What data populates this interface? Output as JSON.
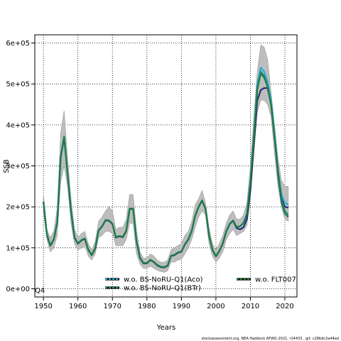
{
  "chart_data": {
    "type": "line",
    "title": "",
    "xlabel": "Years",
    "ylabel": "SSB",
    "xlim": [
      1947.5,
      2023.5
    ],
    "ylim": [
      -20000,
      620000
    ],
    "xticks": [
      1950,
      1960,
      1970,
      1980,
      1990,
      2000,
      2010,
      2020
    ],
    "yticks": [
      0,
      100000,
      200000,
      300000,
      400000,
      500000,
      600000
    ],
    "ytick_labels": [
      "0e+00",
      "1e+05",
      "2e+05",
      "3e+05",
      "4e+05",
      "5e+05",
      "6e+05"
    ],
    "grid": true,
    "legend_position": "bottom",
    "corner_label": "Q4",
    "footer": "stockassessment.org, NEA Haddock AFWG 2021, r14433 , git: c28bdc2a44ad",
    "x": [
      1950,
      1951,
      1952,
      1953,
      1954,
      1955,
      1956,
      1957,
      1958,
      1959,
      1960,
      1961,
      1962,
      1963,
      1964,
      1965,
      1966,
      1967,
      1968,
      1969,
      1970,
      1971,
      1972,
      1973,
      1974,
      1975,
      1976,
      1977,
      1978,
      1979,
      1980,
      1981,
      1982,
      1983,
      1984,
      1985,
      1986,
      1987,
      1988,
      1989,
      1990,
      1991,
      1992,
      1993,
      1994,
      1995,
      1996,
      1997,
      1998,
      1999,
      2000,
      2001,
      2002,
      2003,
      2004,
      2005,
      2006,
      2007,
      2008,
      2009,
      2010,
      2011,
      2012,
      2013,
      2014,
      2015,
      2016,
      2017,
      2018,
      2019,
      2020,
      2021
    ],
    "band": {
      "lower": [
        190000,
        120000,
        90000,
        100000,
        130000,
        260000,
        300000,
        250000,
        160000,
        110000,
        95000,
        100000,
        105000,
        80000,
        70000,
        85000,
        125000,
        130000,
        140000,
        140000,
        135000,
        105000,
        105000,
        105000,
        120000,
        160000,
        160000,
        85000,
        60000,
        50000,
        50000,
        55000,
        50000,
        45000,
        42000,
        40000,
        44000,
        65000,
        65000,
        70000,
        72000,
        85000,
        100000,
        120000,
        150000,
        175000,
        190000,
        180000,
        110000,
        80000,
        65000,
        75000,
        90000,
        120000,
        135000,
        145000,
        130000,
        135000,
        140000,
        155000,
        220000,
        330000,
        430000,
        460000,
        460000,
        450000,
        420000,
        330000,
        250000,
        200000,
        170000,
        165000
      ],
      "upper": [
        230000,
        145000,
        125000,
        140000,
        195000,
        380000,
        435000,
        320000,
        220000,
        145000,
        125000,
        135000,
        140000,
        110000,
        95000,
        115000,
        165000,
        175000,
        190000,
        200000,
        190000,
        145000,
        150000,
        150000,
        170000,
        230000,
        230000,
        140000,
        90000,
        75000,
        75000,
        85000,
        80000,
        70000,
        65000,
        65000,
        70000,
        95000,
        100000,
        105000,
        110000,
        130000,
        140000,
        165000,
        205000,
        220000,
        240000,
        210000,
        150000,
        110000,
        95000,
        110000,
        130000,
        160000,
        180000,
        190000,
        170000,
        170000,
        180000,
        210000,
        300000,
        420000,
        530000,
        595000,
        590000,
        560000,
        480000,
        400000,
        320000,
        265000,
        250000,
        250000
      ]
    },
    "series": [
      {
        "name": "w.o. BS-NoRU-Q1(Aco)",
        "color": "#26aedb",
        "values": [
          212000,
          132000,
          105000,
          120000,
          162000,
          320000,
          370000,
          280000,
          190000,
          125000,
          110000,
          118000,
          122000,
          95000,
          82000,
          98000,
          142000,
          152000,
          167000,
          166000,
          158000,
          125000,
          128000,
          126000,
          141000,
          195000,
          195000,
          115000,
          75000,
          62000,
          62000,
          70000,
          65000,
          57000,
          53000,
          52000,
          56000,
          80000,
          82000,
          88000,
          90000,
          108000,
          120000,
          141000,
          178000,
          200000,
          215000,
          195000,
          130000,
          95000,
          79000,
          92000,
          110000,
          140000,
          158000,
          166000,
          150000,
          152000,
          160000,
          182000,
          260000,
          370000,
          500000,
          540000,
          530000,
          505000,
          460000,
          380000,
          290000,
          230000,
          210000,
          205000
        ]
      },
      {
        "name": "w.o. BS-NoRU-Q1(BTr)",
        "color": "#1d8c78",
        "values": [
          213000,
          133000,
          106000,
          121000,
          163000,
          322000,
          372000,
          281000,
          191000,
          126000,
          111000,
          119000,
          123000,
          96000,
          83000,
          99000,
          143000,
          153000,
          168000,
          167000,
          159000,
          126000,
          129000,
          127000,
          142000,
          196000,
          196000,
          116000,
          76000,
          63000,
          63000,
          71000,
          66000,
          58000,
          54000,
          53000,
          57000,
          81000,
          83000,
          89000,
          91000,
          109000,
          121000,
          142000,
          179000,
          201000,
          216000,
          196000,
          131000,
          96000,
          80000,
          93000,
          111000,
          141000,
          159000,
          167000,
          151000,
          153000,
          161000,
          183000,
          262000,
          375000,
          490000,
          530000,
          520000,
          495000,
          450000,
          370000,
          280000,
          215000,
          190000,
          180000
        ]
      },
      {
        "name": "w.o. FLT007",
        "color": "#1f7a3a",
        "values": [
          212500,
          132500,
          105500,
          120500,
          162500,
          321000,
          371000,
          280500,
          190500,
          125500,
          110500,
          118500,
          122500,
          95500,
          82500,
          98500,
          142500,
          152500,
          167500,
          166500,
          158500,
          125500,
          128500,
          126500,
          141500,
          195500,
          195500,
          115500,
          75500,
          62500,
          62500,
          70500,
          65500,
          57500,
          53500,
          52500,
          56500,
          80500,
          82500,
          88500,
          90500,
          108500,
          120500,
          141500,
          178500,
          200500,
          215500,
          195500,
          130500,
          95500,
          79500,
          92500,
          110500,
          140500,
          158500,
          166500,
          150500,
          152500,
          160500,
          182500,
          258000,
          365000,
          485000,
          525000,
          515000,
          492000,
          448000,
          368000,
          276000,
          210000,
          183000,
          175000
        ]
      },
      {
        "name": "",
        "color": "#2a2f7a",
        "values": [
          212000,
          132000,
          105000,
          120000,
          162000,
          320000,
          370000,
          280000,
          190000,
          125000,
          110000,
          118000,
          122000,
          95000,
          82000,
          98000,
          142000,
          152000,
          167000,
          166000,
          158000,
          125000,
          128000,
          126000,
          141000,
          195000,
          195000,
          115000,
          75000,
          62000,
          62000,
          70000,
          65000,
          57000,
          53000,
          52000,
          56000,
          80000,
          82000,
          88000,
          90000,
          108000,
          120000,
          141000,
          178000,
          200000,
          215000,
          195000,
          130000,
          95000,
          79000,
          92000,
          110000,
          140000,
          158000,
          166000,
          148000,
          145000,
          150000,
          170000,
          240000,
          350000,
          460000,
          485000,
          490000,
          490000,
          450000,
          370000,
          285000,
          220000,
          200000,
          198000
        ]
      }
    ]
  }
}
